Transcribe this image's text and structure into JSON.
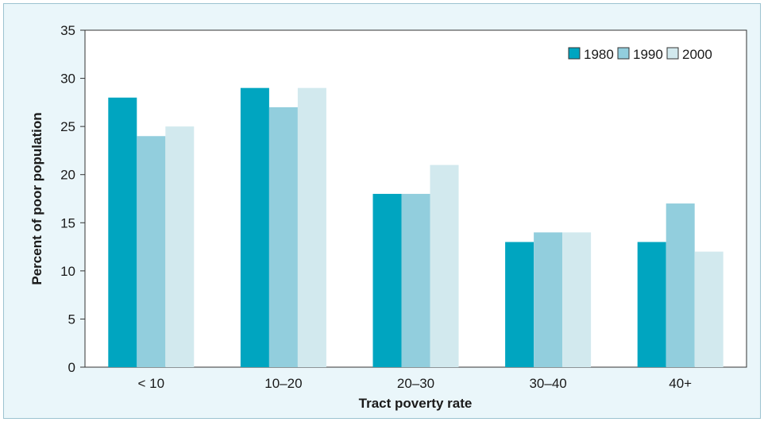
{
  "chart_data": {
    "type": "bar",
    "title": "",
    "xlabel": "Tract poverty rate",
    "ylabel": "Percent of poor population",
    "ylim": [
      0,
      35
    ],
    "yticks": [
      0,
      5,
      10,
      15,
      20,
      25,
      30,
      35
    ],
    "grid": false,
    "legend_position": "top-right",
    "categories": [
      "< 10",
      "10–20",
      "20–30",
      "30–40",
      "40+"
    ],
    "series": [
      {
        "name": "1980",
        "color": "#00a5c0",
        "values": [
          28,
          29,
          18,
          13,
          13
        ]
      },
      {
        "name": "1990",
        "color": "#92cedd",
        "values": [
          24,
          27,
          18,
          14,
          17
        ]
      },
      {
        "name": "2000",
        "color": "#d2e9ee",
        "values": [
          25,
          29,
          21,
          14,
          12
        ]
      }
    ]
  }
}
